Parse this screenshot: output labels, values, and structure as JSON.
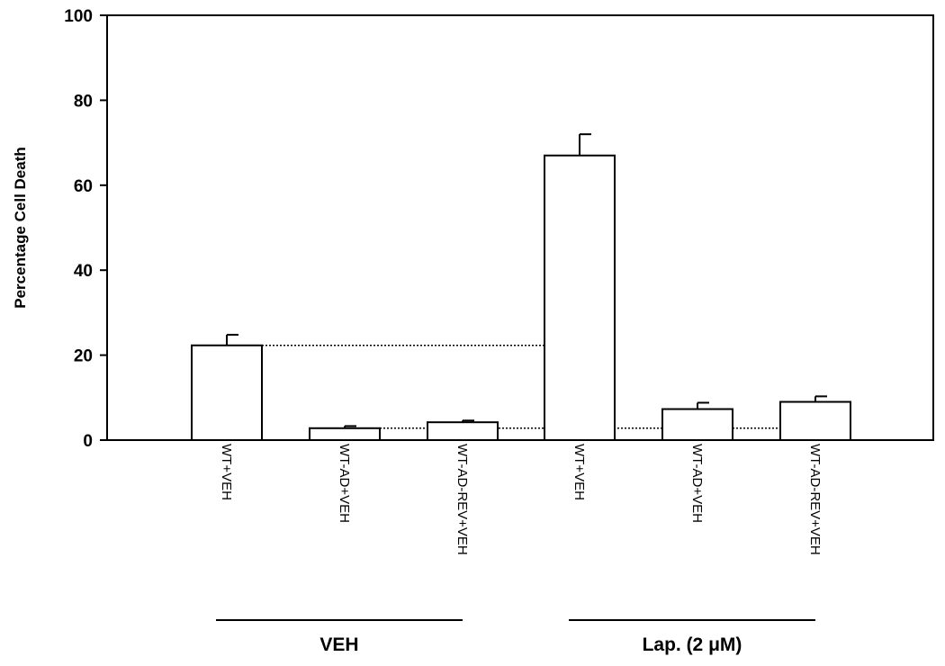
{
  "chart_data": {
    "type": "bar",
    "ylabel": "Percentage Cell Death",
    "xlabel": "",
    "ylim": [
      0,
      100
    ],
    "yticks": [
      0,
      20,
      40,
      60,
      80,
      100
    ],
    "grid": false,
    "categories": [
      "WT+VEH",
      "WT-AD+VEH",
      "WT-AD-REV+VEH",
      "WT+VEH",
      "WT-AD+VEH",
      "WT-AD-REV+VEH"
    ],
    "values": [
      22.3,
      2.8,
      4.2,
      67.0,
      7.3,
      9.0
    ],
    "errors": [
      2.5,
      0.5,
      0.4,
      5.0,
      1.5,
      1.3
    ],
    "groups": [
      {
        "label": "VEH",
        "categories": [
          0,
          1,
          2
        ]
      },
      {
        "label": "Lap. (2 μM)",
        "categories": [
          3,
          4,
          5
        ]
      }
    ],
    "reference_lines": [
      {
        "y": 22.3,
        "from_category": 0,
        "to_category": 3,
        "style": "dotted"
      },
      {
        "y": 2.8,
        "from_category": 1,
        "to_category": 5,
        "style": "dotted"
      }
    ]
  }
}
